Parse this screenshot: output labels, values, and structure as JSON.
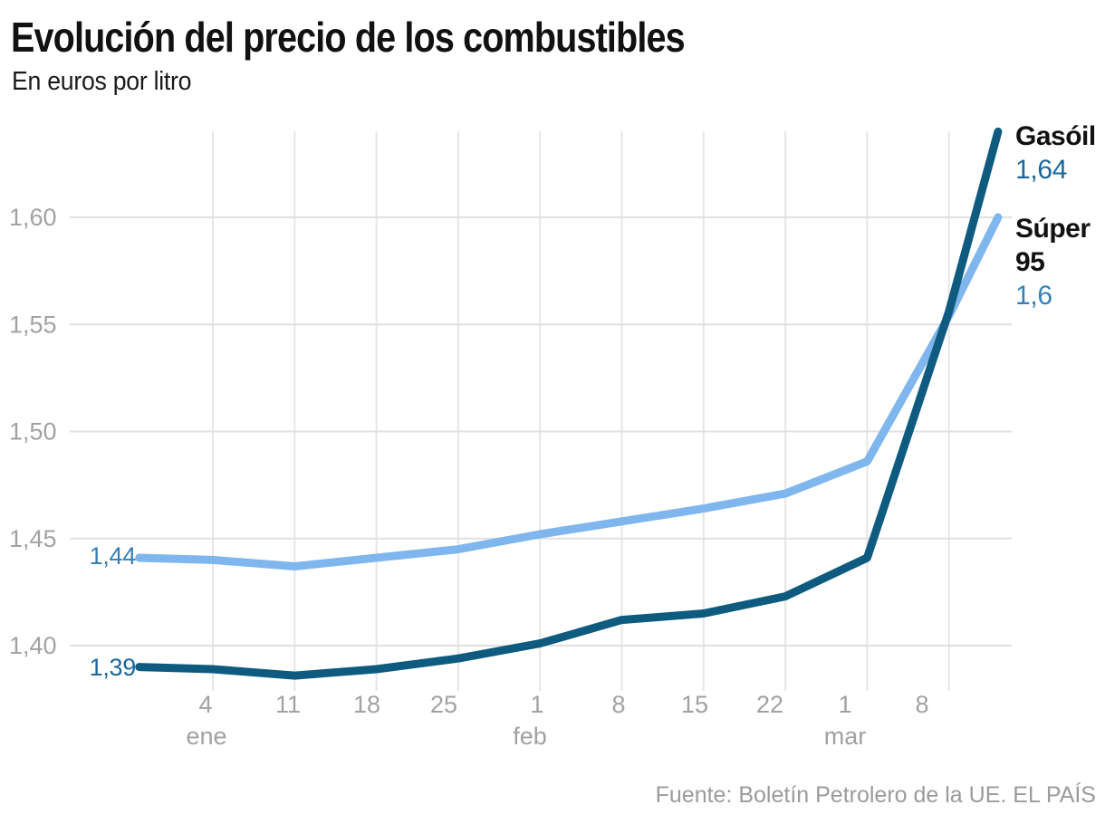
{
  "header": {
    "title": "Evolución del precio de los combustibles",
    "subtitle": "En euros por litro"
  },
  "footer": {
    "source": "Fuente: Boletín Petrolero de la UE. EL PAÍS"
  },
  "chart_data": {
    "type": "line",
    "title": "Evolución del precio de los combustibles",
    "unit_label": "En euros por litro",
    "grid": true,
    "legend_position": "right-of-line-ends",
    "ylim": [
      1.374,
      1.648
    ],
    "y_ticks": [
      {
        "label": "1,40",
        "value": 1.4
      },
      {
        "label": "1,45",
        "value": 1.45
      },
      {
        "label": "1,50",
        "value": 1.5
      },
      {
        "label": "1,55",
        "value": 1.55
      },
      {
        "label": "1,60",
        "value": 1.6
      }
    ],
    "x_ticks": [
      {
        "day": "4",
        "month": "ene",
        "u": 0
      },
      {
        "day": "11",
        "u": 1
      },
      {
        "day": "18",
        "u": 2
      },
      {
        "day": "25",
        "u": 3
      },
      {
        "day": "1",
        "month": "feb",
        "u": 4
      },
      {
        "day": "8",
        "u": 5
      },
      {
        "day": "15",
        "u": 6
      },
      {
        "day": "22",
        "u": 7
      },
      {
        "day": "1",
        "month": "mar",
        "u": 8
      },
      {
        "day": "8",
        "u": 9
      }
    ],
    "series": [
      {
        "id": "super95",
        "name": "Súper 95",
        "color": "#7eb6ed",
        "label_color": "#3580b8",
        "start_label": "1,44",
        "end_label": "1,6",
        "points": [
          {
            "u": -0.9,
            "v": 1.441
          },
          {
            "u": 0,
            "v": 1.44
          },
          {
            "u": 1,
            "v": 1.437
          },
          {
            "u": 2,
            "v": 1.441
          },
          {
            "u": 3,
            "v": 1.445
          },
          {
            "u": 4,
            "v": 1.452
          },
          {
            "u": 5,
            "v": 1.458
          },
          {
            "u": 6,
            "v": 1.464
          },
          {
            "u": 7,
            "v": 1.471
          },
          {
            "u": 8,
            "v": 1.486
          },
          {
            "u": 9,
            "v": 1.554
          },
          {
            "u": 9.6,
            "v": 1.6
          }
        ]
      },
      {
        "id": "gasoil",
        "name": "Gasóil",
        "color": "#0e5b7f",
        "label_color": "#1b679b",
        "start_label": "1,39",
        "end_label": "1,64",
        "points": [
          {
            "u": -0.9,
            "v": 1.39
          },
          {
            "u": 0,
            "v": 1.389
          },
          {
            "u": 1,
            "v": 1.386
          },
          {
            "u": 2,
            "v": 1.389
          },
          {
            "u": 3,
            "v": 1.394
          },
          {
            "u": 4,
            "v": 1.401
          },
          {
            "u": 5,
            "v": 1.412
          },
          {
            "u": 6,
            "v": 1.415
          },
          {
            "u": 7,
            "v": 1.423
          },
          {
            "u": 8,
            "v": 1.441
          },
          {
            "u": 9,
            "v": 1.556
          },
          {
            "u": 9.6,
            "v": 1.64
          }
        ]
      }
    ],
    "colors": {
      "grid_horizontal": "#e0e0e0",
      "grid_vertical": "#e6e6e6",
      "axis_text": "#a2a2a2",
      "title_text": "#111111",
      "footer_text": "#9b9b9b"
    }
  }
}
